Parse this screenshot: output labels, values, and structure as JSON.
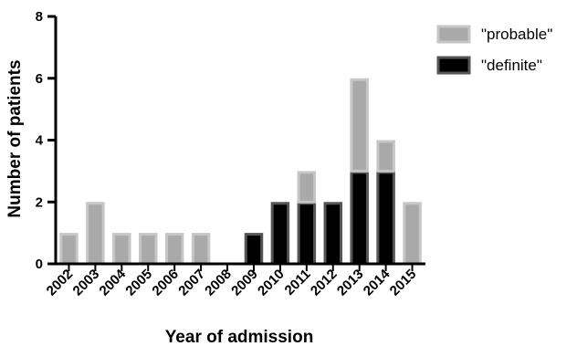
{
  "chart_data": {
    "type": "bar",
    "stacked": true,
    "categories": [
      "2002",
      "2003",
      "2004",
      "2005",
      "2006",
      "2007",
      "2008",
      "2009",
      "2010",
      "2011",
      "2012",
      "2013",
      "2014",
      "2015"
    ],
    "series": [
      {
        "name": "\"definite\"",
        "values": [
          0,
          0,
          0,
          0,
          0,
          0,
          0,
          1,
          2,
          2,
          2,
          3,
          3,
          0
        ],
        "color": "#000000",
        "stroke": "#555555"
      },
      {
        "name": "\"probable\"",
        "values": [
          1,
          2,
          1,
          1,
          1,
          1,
          0,
          0,
          0,
          1,
          0,
          3,
          1,
          2
        ],
        "color": "#a9a9a9",
        "stroke": "#c6c6c6"
      }
    ],
    "legend_order": [
      "\"probable\"",
      "\"definite\""
    ],
    "legend_position": "top-right",
    "xlabel": "Year of admission",
    "ylabel": "Number of patients",
    "ylim": [
      0,
      8
    ],
    "yticks": [
      0,
      2,
      4,
      6,
      8
    ],
    "grid": false
  }
}
